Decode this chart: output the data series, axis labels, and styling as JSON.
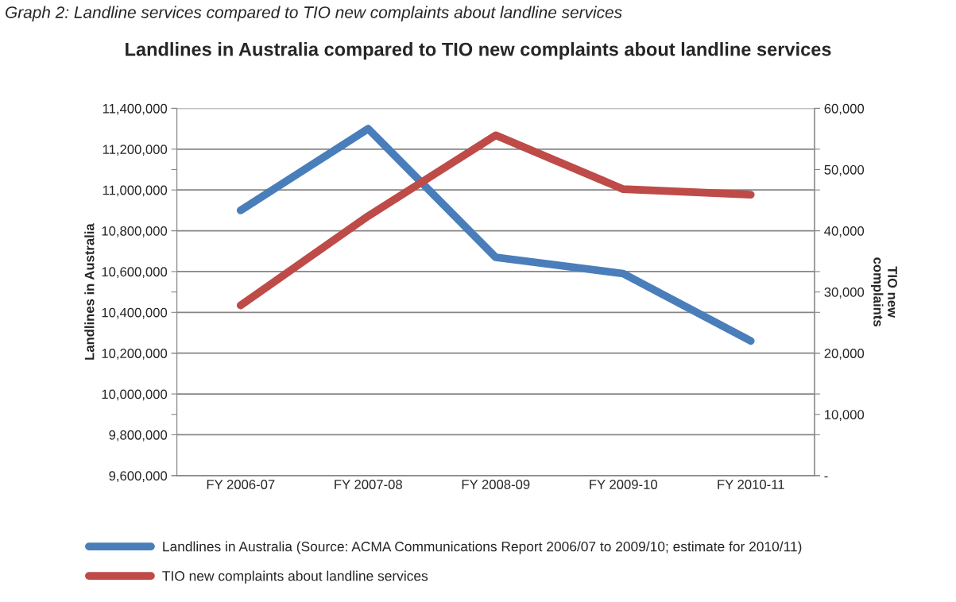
{
  "chart_data": {
    "type": "line",
    "title": "Landlines in Australia compared to TIO new complaints about landline services",
    "annotations": [
      "Graph 2: Landline services compared to TIO new complaints about landline services"
    ],
    "ylabel": "Landlines in Australia",
    "y2label": "TIO new\ncomplaints",
    "categories": [
      "FY 2006-07",
      "FY 2007-08",
      "FY 2008-09",
      "FY 2009-10",
      "FY 2010-11"
    ],
    "series": [
      {
        "name": "Landlines in Australia (Source: ACMA Communications Report 2006/07 to 2009/10; estimate for 2010/11)",
        "color": "#4a7ebb",
        "values": [
          10900000,
          11300000,
          10670000,
          10590000,
          10260000
        ]
      },
      {
        "name": "TIO new complaints about landline services",
        "color": "#be4b48",
        "axis": "y2",
        "values": [
          27800,
          42400,
          55600,
          46800,
          45900
        ]
      }
    ],
    "ylim": [
      9600000,
      11400000
    ],
    "yticks": [
      {
        "value": 9600000,
        "label": "9,600,000"
      },
      {
        "value": 9800000,
        "label": "9,800,000"
      },
      {
        "value": 10000000,
        "label": "10,000,000"
      },
      {
        "value": 10200000,
        "label": "10,200,000"
      },
      {
        "value": 10400000,
        "label": "10,400,000"
      },
      {
        "value": 10600000,
        "label": "10,600,000"
      },
      {
        "value": 10800000,
        "label": "10,800,000"
      },
      {
        "value": 11000000,
        "label": "11,000,000"
      },
      {
        "value": 11200000,
        "label": "11,200,000"
      },
      {
        "value": 11400000,
        "label": "11,400,000"
      }
    ],
    "y2lim": [
      0,
      60000
    ],
    "y2ticks": [
      {
        "value": 0,
        "label": "-"
      },
      {
        "value": 10000,
        "label": "10,000"
      },
      {
        "value": 20000,
        "label": "20,000"
      },
      {
        "value": 30000,
        "label": "30,000"
      },
      {
        "value": 40000,
        "label": "40,000"
      },
      {
        "value": 50000,
        "label": "50,000"
      },
      {
        "value": 60000,
        "label": "60,000"
      }
    ],
    "grid": "y",
    "legend": "bottom",
    "marker": "none",
    "line_style": "solid"
  }
}
